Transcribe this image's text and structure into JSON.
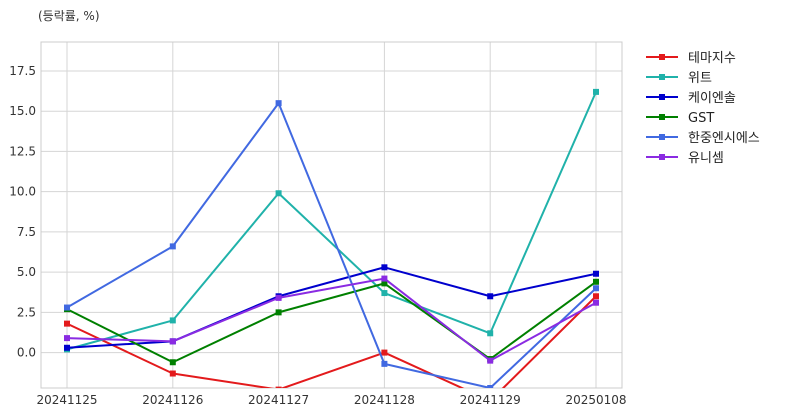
{
  "chart_data": {
    "type": "line",
    "unit_label": "(등락률, %)",
    "categories": [
      "20241125",
      "20241126",
      "20241127",
      "20241128",
      "20241129",
      "20250108"
    ],
    "ylim": [
      -2.2,
      19.3
    ],
    "yticks": [
      0.0,
      2.5,
      5.0,
      7.5,
      10.0,
      12.5,
      15.0,
      17.5
    ],
    "ytick_labels": [
      "0.0",
      "2.5",
      "5.0",
      "7.5",
      "10.0",
      "12.5",
      "15.0",
      "17.5"
    ],
    "grid": true,
    "legend_position": "outside-right-top",
    "series": [
      {
        "name": "테마지수",
        "color": "#e31a1c",
        "values": [
          1.8,
          -1.3,
          -2.3,
          0.0,
          -3.0,
          3.5
        ]
      },
      {
        "name": "위트",
        "color": "#20b2aa",
        "values": [
          0.2,
          2.0,
          9.9,
          3.7,
          1.2,
          16.2
        ]
      },
      {
        "name": "케이엔솔",
        "color": "#0000cd",
        "values": [
          0.3,
          0.7,
          3.5,
          5.3,
          3.5,
          4.9
        ]
      },
      {
        "name": "GST",
        "color": "#008000",
        "values": [
          2.7,
          -0.6,
          2.5,
          4.3,
          -0.4,
          4.4
        ]
      },
      {
        "name": "한중엔시에스",
        "color": "#4169e1",
        "values": [
          2.8,
          6.6,
          15.5,
          -0.7,
          -2.2,
          4.0
        ]
      },
      {
        "name": "유니셈",
        "color": "#8a2be2",
        "values": [
          0.9,
          0.7,
          3.4,
          4.6,
          -0.5,
          3.1
        ]
      }
    ]
  }
}
